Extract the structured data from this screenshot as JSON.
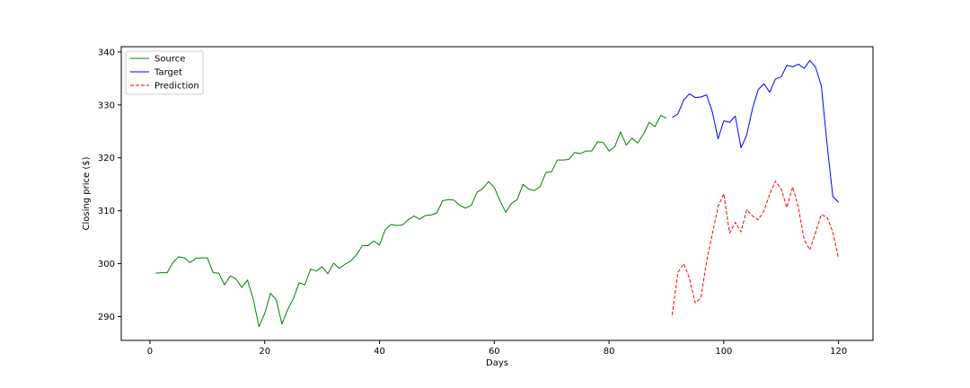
{
  "chart_data": {
    "type": "line",
    "xlabel": "Days",
    "ylabel": "Closing price ($)",
    "xlim": [
      -5,
      126
    ],
    "ylim": [
      285.5,
      341
    ],
    "xticks": [
      0,
      20,
      40,
      60,
      80,
      100,
      120
    ],
    "yticks": [
      290,
      300,
      310,
      320,
      330,
      340
    ],
    "legend_position": "upper-left",
    "grid": false,
    "series": [
      {
        "name": "Source",
        "color": "#008000",
        "style": "solid",
        "x": [
          1,
          2,
          3,
          4,
          5,
          6,
          7,
          8,
          9,
          10,
          11,
          12,
          13,
          14,
          15,
          16,
          17,
          18,
          19,
          20,
          21,
          22,
          23,
          24,
          25,
          26,
          27,
          28,
          29,
          30,
          31,
          32,
          33,
          34,
          35,
          36,
          37,
          38,
          39,
          40,
          41,
          42,
          43,
          44,
          45,
          46,
          47,
          48,
          49,
          50,
          51,
          52,
          53,
          54,
          55,
          56,
          57,
          58,
          59,
          60,
          61,
          62,
          63,
          64,
          65,
          66,
          67,
          68,
          69,
          70,
          71,
          72,
          73,
          74,
          75,
          76,
          77,
          78,
          79,
          80,
          81,
          82,
          83,
          84,
          85,
          86,
          87,
          88,
          89,
          90
        ],
        "values": [
          298.2,
          298.3,
          298.3,
          300.2,
          301.3,
          301.1,
          300.2,
          301.0,
          301.1,
          301.1,
          298.3,
          298.2,
          296.0,
          297.7,
          297.1,
          295.5,
          296.9,
          293.3,
          288.1,
          290.6,
          294.4,
          293.2,
          288.6,
          291.3,
          293.4,
          296.4,
          296.0,
          299.0,
          298.6,
          299.4,
          298.1,
          300.1,
          299.1,
          299.9,
          300.5,
          301.7,
          303.4,
          303.4,
          304.3,
          303.5,
          306.4,
          307.4,
          307.2,
          307.3,
          308.3,
          309.0,
          308.4,
          309.1,
          309.2,
          309.6,
          311.9,
          312.1,
          312.0,
          311.0,
          310.5,
          311.0,
          313.5,
          314.2,
          315.5,
          314.4,
          311.9,
          309.7,
          311.4,
          312.1,
          315.0,
          314.1,
          313.8,
          314.6,
          317.2,
          317.4,
          319.6,
          319.6,
          319.7,
          321.0,
          320.8,
          321.3,
          321.3,
          323.0,
          322.9,
          321.3,
          322.1,
          324.9,
          322.4,
          323.7,
          322.8,
          324.5,
          326.7,
          325.9,
          328.0,
          327.5
        ]
      },
      {
        "name": "Target",
        "color": "#0000ff",
        "style": "solid",
        "x": [
          91,
          92,
          93,
          94,
          95,
          96,
          97,
          98,
          99,
          100,
          101,
          102,
          103,
          104,
          105,
          106,
          107,
          108,
          109,
          110,
          111,
          112,
          113,
          114,
          115,
          116,
          117,
          118,
          119,
          120
        ],
        "values": [
          327.6,
          328.3,
          330.9,
          332.1,
          331.4,
          331.5,
          331.9,
          328.7,
          323.6,
          327.0,
          326.7,
          327.9,
          321.9,
          324.3,
          329.3,
          332.9,
          334.0,
          332.4,
          334.9,
          335.3,
          337.5,
          337.2,
          337.7,
          336.9,
          338.4,
          337.1,
          333.6,
          322.5,
          312.7,
          311.6
        ]
      },
      {
        "name": "Prediction",
        "color": "#ff0000",
        "style": "dashed",
        "x": [
          91,
          92,
          93,
          94,
          95,
          96,
          97,
          98,
          99,
          100,
          101,
          102,
          103,
          104,
          105,
          106,
          107,
          108,
          109,
          110,
          111,
          112,
          113,
          114,
          115,
          116,
          117,
          118,
          119,
          120
        ],
        "values": [
          290.3,
          298.3,
          300.0,
          297.3,
          292.6,
          293.5,
          300.4,
          305.6,
          310.8,
          313.2,
          305.8,
          307.8,
          306.0,
          310.2,
          309.0,
          308.3,
          310.0,
          313.1,
          315.6,
          314.1,
          310.6,
          314.5,
          310.6,
          304.6,
          302.6,
          305.9,
          309.3,
          308.7,
          306.0,
          301.0
        ]
      }
    ]
  }
}
